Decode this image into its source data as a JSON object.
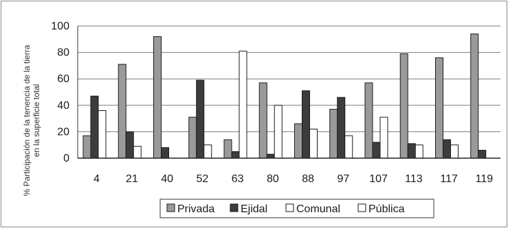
{
  "chart_data": {
    "type": "bar",
    "title": "",
    "xlabel": "",
    "ylabel_lines": [
      "% Participación de la tenencia de la tierra",
      "en la superficie total"
    ],
    "categories": [
      "4",
      "21",
      "40",
      "52",
      "63",
      "80",
      "88",
      "97",
      "107",
      "113",
      "117",
      "119"
    ],
    "ylim": [
      0,
      100
    ],
    "yticks": [
      0,
      20,
      40,
      60,
      80,
      100
    ],
    "grid": "horizontal",
    "legend_position": "bottom",
    "series": [
      {
        "name": "Privada",
        "color": "#9a9a9a",
        "values": [
          17,
          71,
          92,
          31,
          14,
          57,
          26,
          37,
          57,
          79,
          76,
          94
        ]
      },
      {
        "name": "Ejidal",
        "color": "#3c3c3c",
        "values": [
          47,
          20,
          8,
          59,
          5,
          3,
          51,
          46,
          12,
          11,
          14,
          6
        ]
      },
      {
        "name": "Comunal",
        "color": "#ffffff",
        "values": [
          36,
          9,
          0,
          10,
          81,
          40,
          22,
          17,
          31,
          10,
          10,
          0
        ]
      },
      {
        "name": "Pública",
        "color": "#ffffff",
        "values": [
          0,
          0,
          0,
          0,
          0,
          0,
          0,
          0,
          0,
          0,
          0,
          0
        ]
      }
    ]
  }
}
